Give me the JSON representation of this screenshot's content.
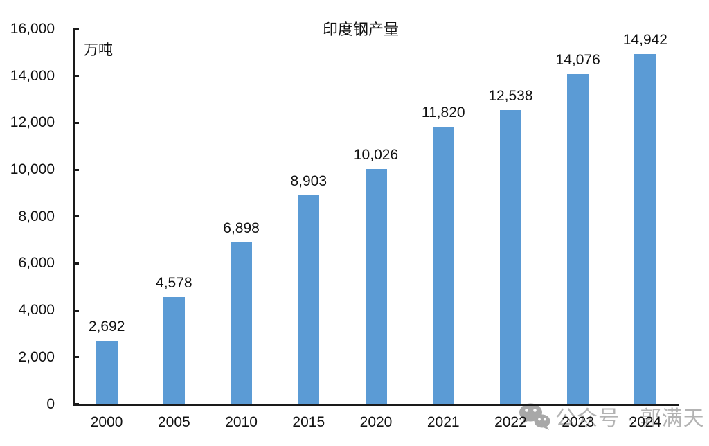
{
  "watermark": {
    "icon": "wechat-icon",
    "text": "公众号 · 郭满天"
  },
  "chart_data": {
    "type": "bar",
    "title": "印度钢产量",
    "ylabel": "万吨",
    "xlabel": "",
    "categories": [
      "2000",
      "2005",
      "2010",
      "2015",
      "2020",
      "2021",
      "2022",
      "2023",
      "2024"
    ],
    "values": [
      2692,
      4578,
      6898,
      8903,
      10026,
      11820,
      12538,
      14076,
      14942
    ],
    "value_labels": [
      "2,692",
      "4,578",
      "6,898",
      "8,903",
      "10,026",
      "11,820",
      "12,538",
      "14,076",
      "14,942"
    ],
    "ylim": [
      0,
      16000
    ],
    "ytick_step": 2000,
    "ytick_labels": [
      "0",
      "2,000",
      "4,000",
      "6,000",
      "8,000",
      "10,000",
      "12,000",
      "14,000",
      "16,000"
    ],
    "bar_color": "#5B9BD5",
    "axis_color": "#1a1a1a",
    "text_color": "#111111",
    "watermark_color": "#b3b3b3",
    "grid": false,
    "legend_position": "none"
  }
}
